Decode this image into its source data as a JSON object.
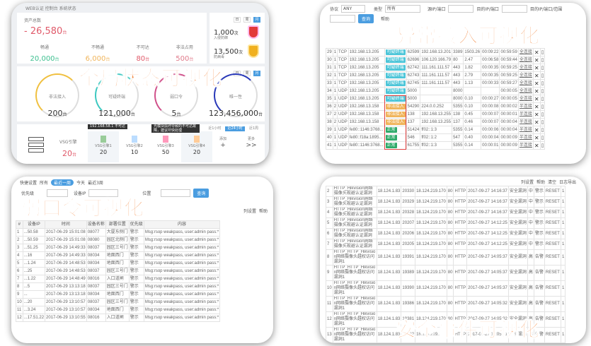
{
  "overlay_titles": {
    "global": "全局状态可视化",
    "abnormal": "异常接入可视化",
    "weak": "弱口令可视化",
    "security": "安全事件可视化"
  },
  "colors": {
    "accent": "#4a9de0",
    "overlay": "#f07828",
    "green": "#3cbf8f",
    "orange": "#f0b45a",
    "red": "#e05a6a",
    "teal": "#4cc5d8",
    "ok": "#2faa6a"
  },
  "dashboard": {
    "breadcrumb": "WEB认证  控制台  系统状态",
    "assets": {
      "label": "资产总数",
      "value": "- 26,580",
      "unit": "台",
      "stats": [
        {
          "label": "畅通",
          "value": "20,000",
          "unit": "台",
          "color": "#3cbf8f"
        },
        {
          "label": "不畅通",
          "value": "6,000",
          "unit": "台",
          "color": "#f0b45a"
        },
        {
          "label": "不可达",
          "value": "80",
          "unit": "台",
          "color": "#e05a6a"
        },
        {
          "label": "非法占用",
          "value": "500",
          "unit": "台",
          "color": "#e07a8a"
        }
      ]
    },
    "period_buttons": [
      "日",
      "周",
      "月"
    ],
    "threats": [
      {
        "value": "1,000",
        "unit": "次",
        "label": "入侵防御",
        "icon": "shield-red-icon"
      },
      {
        "value": "13,500",
        "unit": "次",
        "label": "防病毒",
        "icon": "shield-gold-icon"
      }
    ],
    "gauges": [
      {
        "label": "非法接入",
        "value": "200",
        "unit": "台",
        "color": "#f0c040"
      },
      {
        "label": "可疑终端",
        "value": "121,000",
        "unit": "台",
        "color": "#3cc8c0"
      },
      {
        "label": "弱口令",
        "value": "5",
        "unit": "台",
        "color": "#d0508a"
      },
      {
        "label": "唯一性",
        "value": "123,456,000",
        "unit": "台",
        "color": "#2838b8"
      }
    ],
    "engine": {
      "label": "VSG引擎",
      "value": "20",
      "unit": "台",
      "items": [
        {
          "name": "VSG引擎1",
          "value": "20"
        },
        {
          "name": "VSG引擎2",
          "value": "10"
        },
        {
          "name": "VSG引擎3",
          "value": "50"
        },
        {
          "name": "VSG引擎4",
          "value": "20"
        }
      ],
      "add": {
        "label": "添加",
        "symbol": "+"
      },
      "more": {
        "label": "更多",
        "symbol": ">>"
      },
      "tooltip1": "192.168.58.1 不可达",
      "tooltip2": "光模块损坏导致的不可达故障，建议尽快处理",
      "tabs": [
        "近1小时",
        "近24小时",
        "近1周"
      ]
    }
  },
  "abnormal": {
    "filters": {
      "protocol_label": "协议",
      "protocol_value": "ANY",
      "type_label": "类型",
      "type_value": "所有",
      "src_label": "源IP/端口",
      "dst_label": "目的IP/端口",
      "range_label": "目的IP/端口/范围",
      "search": "查询",
      "help": "帮助"
    },
    "rows": [
      [
        "29",
        "1",
        "TCP",
        "192.168.13.205",
        "可疑终端",
        "62599",
        "192.168.13.201",
        "3389",
        "1503.26",
        "00:09:22",
        "00:59:59",
        "全连接"
      ],
      [
        "30",
        "1",
        "TCP",
        "192.168.13.205",
        "可疑终端",
        "62696",
        "106.120.166.79",
        "80",
        "2.47",
        "00:06:58",
        "00:59:44",
        "全连接"
      ],
      [
        "31",
        "1",
        "TCP",
        "192.168.13.205",
        "可疑终端",
        "62742",
        "111.161.111.57",
        "443",
        "1.82",
        "00:00:35",
        "00:59:25",
        "全连接"
      ],
      [
        "32",
        "1",
        "TCP",
        "192.168.13.205",
        "可疑终端",
        "62743",
        "111.161.111.57",
        "443",
        "2.79",
        "00:00:35",
        "00:59:25",
        "全连接"
      ],
      [
        "33",
        "1",
        "TCP",
        "192.168.13.205",
        "可疑终端",
        "62745",
        "111.161.111.57",
        "443",
        "1.13",
        "00:00:33",
        "00:59:27",
        "全连接"
      ],
      [
        "34",
        "1",
        "UDP",
        "192.168.13.205",
        "可疑终端",
        "5000",
        "",
        "8000",
        "",
        "",
        "00:00:05",
        "全连接"
      ],
      [
        "35",
        "1",
        "UDP",
        "192.168.13.205",
        "可疑终端",
        "5000",
        "",
        "8000",
        "0.10",
        "00:00:27",
        "00:00:05",
        "全连接"
      ],
      [
        "36",
        "2",
        "UDP",
        "192.168.13.158",
        "非法接入",
        "54290",
        "224.0.0.252",
        "5355",
        "0.10",
        "00:00:08",
        "00:00:02",
        "半连接"
      ],
      [
        "37",
        "2",
        "UDP",
        "192.168.13.158",
        "非法接入",
        "138",
        "192.168.13.255",
        "138",
        "0.45",
        "00:00:07",
        "00:00:01",
        "半连接"
      ],
      [
        "38",
        "2",
        "UDP",
        "192.168.13.158",
        "非法接入",
        "137",
        "192.168.13.255",
        "137",
        "0.46",
        "00:00:07",
        "00:00:04",
        "半连接"
      ],
      [
        "39",
        "1",
        "UDP",
        "fe80::1146:3768...",
        "正常",
        "51424",
        "ff02::1:3",
        "5355",
        "0.14",
        "00:00:06",
        "00:00:04",
        "半连接"
      ],
      [
        "40",
        "1",
        "UDP",
        "fe80::f18a:1895...",
        "正常",
        "546",
        "ff02::1:2",
        "547",
        "0.40",
        "00:00:04",
        "00:00:09",
        "半连接"
      ],
      [
        "41",
        "1",
        "UDP",
        "fe80::1146:3768...",
        "正常",
        "61755",
        "ff02::1:3",
        "5355",
        "0.14",
        "00:00:01",
        "00:00:09",
        "半连接"
      ]
    ]
  },
  "weak": {
    "quick": {
      "label": "快捷设置",
      "items": [
        "所有",
        "最近一周",
        "今天",
        "最近3周"
      ],
      "active": 1
    },
    "filters": {
      "priority_label": "优先级",
      "ip_label": "设备IP",
      "location_label": "位置",
      "search": "查询"
    },
    "toolbar": {
      "columns": "列设置",
      "help": "帮助"
    },
    "columns": [
      "#",
      "设备IP",
      "时间",
      "设备名称",
      "部署位置",
      "优先级",
      "内容"
    ],
    "rows": [
      [
        "1",
        "...50.58",
        "2017-06-29 15:01:08",
        "08077",
        "大厦东侧门",
        "警示",
        "Msg:rsop weakpass, user:admin pass:*"
      ],
      [
        "2",
        "...50.59",
        "2017-06-29 15:01:08",
        "08080",
        "园区北侧门",
        "警示",
        "Msg:rsop weakpass, user:admin pass:*"
      ],
      [
        "3",
        "...51.25",
        "2017-06-29 14:49:33",
        "08037",
        "园区三号门",
        "警示",
        "Msg:rsop weakpass, user:admin pass:*"
      ],
      [
        "4",
        "...16",
        "2017-06-29 14:49:33",
        "08034",
        "地面西门",
        "警示",
        "Msg:rsop weakpass, user:admin pass:*"
      ],
      [
        "5",
        "...1.24",
        "2017-06-29 14:48:53",
        "08034",
        "地面西门",
        "警示",
        "Msg:rsop weakpass, user:admin pass:*"
      ],
      [
        "6",
        "...25",
        "2017-06-29 14:48:53",
        "08037",
        "园区三号门",
        "警示",
        "Msg:rsop weakpass, user:admin pass:*"
      ],
      [
        "7",
        "...1.22",
        "2017-06-29 14:48:49",
        "08016",
        "入口道闸",
        "警示",
        "Msg:rsop weakpass, user:admin pass:*"
      ],
      [
        "8",
        "...5",
        "2017-06-29 13:13:18",
        "08037",
        "园区三号门",
        "警示",
        "Msg:rsop weakpass, user:admin pass:*"
      ],
      [
        "9",
        "...",
        "2017-06-29 13:13:18",
        "08034",
        "地面西门",
        "警示",
        "Msg:rsop weakpass, user:admin pass:*"
      ],
      [
        "10",
        "...20",
        "2017-06-29 13:10:57",
        "08037",
        "园区三号门",
        "警示",
        "Msg:rsop weakpass, user:admin pass:*"
      ],
      [
        "11",
        "...3.24",
        "2017-06-29 13:10:57",
        "08034",
        "地面西门",
        "警示",
        "Msg:rsop weakpass, user:admin pass:*"
      ],
      [
        "12",
        "...17.51.22",
        "2017-06-29 13:10:55",
        "08016",
        "入口道闸",
        "警示",
        "Msg:rsop weakpass, user:admin pass:*"
      ]
    ]
  },
  "security": {
    "toolbar": {
      "columns": "列设置",
      "help": "帮助",
      "clear": "清空",
      "export": "日志导出"
    },
    "rows": [
      [
        "2",
        "HTTP_Hikvision网络摄像头规避认证漏洞",
        "18.124.1.83",
        "20330",
        "18.124.219.170",
        "80",
        "HTTP",
        "2017-09-27 14:16:37",
        "安全漏洞",
        "中",
        "警示",
        "RESET",
        "1"
      ],
      [
        "3",
        "HTTP_Hikvision网络摄像头规避认证漏洞",
        "18.124.1.83",
        "20329",
        "18.124.219.170",
        "80",
        "HTTP",
        "2017-09-27 14:16:37",
        "安全漏洞",
        "中",
        "警示",
        "RESET",
        "1"
      ],
      [
        "4",
        "HTTP_Hikvision网络摄像头规避认证漏洞",
        "18.124.1.83",
        "20328",
        "18.124.219.170",
        "80",
        "HTTP",
        "2017-09-27 14:16:37",
        "安全漏洞",
        "中",
        "警示",
        "RESET",
        "1"
      ],
      [
        "5",
        "HTTP_Hikvision网络摄像头规避认证漏洞",
        "18.124.1.83",
        "20207",
        "18.124.219.170",
        "80",
        "HTTP",
        "2017-09-27 14:12:25",
        "安全漏洞",
        "中",
        "警示",
        "RESET",
        "1"
      ],
      [
        "6",
        "HTTP_Hikvision网络摄像头规避认证漏洞",
        "18.124.1.83",
        "20206",
        "18.124.219.170",
        "80",
        "HTTP",
        "2017-09-27 14:12:25",
        "安全漏洞",
        "中",
        "警示",
        "RESET",
        "1"
      ],
      [
        "7",
        "HTTP_Hikvision网络摄像头规避认证漏洞",
        "18.124.1.83",
        "20205",
        "18.124.219.170",
        "80",
        "HTTP",
        "2017-09-27 14:12:25",
        "安全漏洞",
        "中",
        "警示",
        "RESET",
        "1"
      ],
      [
        "8",
        "HTTP_HTTP_Hikvision网络摄像头越权访问漏洞1",
        "18.124.1.83",
        "19391",
        "18.124.219.170",
        "80",
        "HTTP",
        "2017-09-27 14:05:37",
        "安全漏洞",
        "高",
        "告警",
        "RESET",
        "1"
      ],
      [
        "9",
        "HTTP_HTTP_Hikvision网络摄像头越权访问漏洞1",
        "18.124.1.83",
        "19389",
        "18.124.219.170",
        "80",
        "HTTP",
        "2017-09-27 14:05:37",
        "安全漏洞",
        "高",
        "告警",
        "RESET",
        "1"
      ],
      [
        "10",
        "HTTP_HTTP_Hikvision网络摄像头越权访问漏洞1",
        "18.124.1.83",
        "19390",
        "18.124.219.170",
        "80",
        "HTTP",
        "2017-09-27 14:05:37",
        "安全漏洞",
        "高",
        "告警",
        "RESET",
        "1"
      ],
      [
        "11",
        "HTTP_HTTP_Hikvision网络摄像头越权访问漏洞1",
        "18.124.1.83",
        "19386",
        "18.124.219.170",
        "80",
        "HTTP",
        "2017-09-27 14:05:32",
        "安全漏洞",
        "高",
        "告警",
        "RESET",
        "1"
      ],
      [
        "12",
        "HTTP_HTTP_Hikvision网络摄像头越权访问漏洞1",
        "18.124.1.83",
        "19381",
        "18.124.219.170",
        "80",
        "HTTP",
        "2017-09-27 14:05:32",
        "安全漏洞",
        "高",
        "告警",
        "RESET",
        "1"
      ],
      [
        "13",
        "HTTP_HTTP_Hikvision网络摄像头越权访问漏洞1",
        "18.124.1.83",
        "19382",
        "18.124.219.170",
        "80",
        "HTTP",
        "2017-09-27 14:05:31",
        "安全漏洞",
        "高",
        "告警",
        "RESET",
        "1"
      ],
      [
        "14",
        "HTTP_Hikvision网络摄像头越权下载配置文件漏洞",
        "18.124.1.83",
        "18566",
        "18.124.219.170",
        "80",
        "HTTP",
        "2017-09-27 14:01:42",
        "安全漏洞",
        "中",
        "警示",
        "RESET",
        "1"
      ]
    ]
  }
}
